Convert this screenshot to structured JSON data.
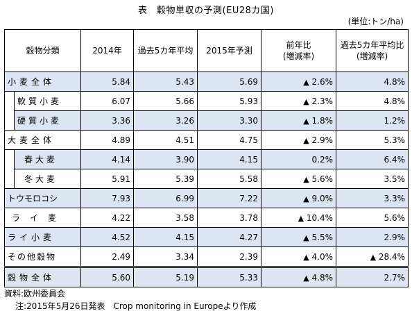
{
  "title": "表　穀物単収の予測(EU28カ国)",
  "unit": "(単位:トン/ha)",
  "headers": {
    "category": "穀物分類",
    "y2014": "2014年",
    "avg5": "過去5カ年平均",
    "forecast2015": "2015年予測",
    "yoy_line1": "前年比",
    "yoy_line2": "(増減率)",
    "vs5_line1": "過去5カ年平均比",
    "vs5_line2": "(増減率)"
  },
  "rows": [
    {
      "label": "小麦全体",
      "y2014": "5.84",
      "avg5": "5.43",
      "f2015": "5.69",
      "yoy_neg": "▲",
      "yoy": "2.6%",
      "vs5_neg": "",
      "vs5": "4.8%"
    },
    {
      "label": "軟質小麦",
      "y2014": "6.07",
      "avg5": "5.66",
      "f2015": "5.93",
      "yoy_neg": "▲",
      "yoy": "2.3%",
      "vs5_neg": "",
      "vs5": "4.8%"
    },
    {
      "label": "硬質小麦",
      "y2014": "3.36",
      "avg5": "3.26",
      "f2015": "3.30",
      "yoy_neg": "▲",
      "yoy": "1.8%",
      "vs5_neg": "",
      "vs5": "1.2%"
    },
    {
      "label": "大麦全体",
      "y2014": "4.89",
      "avg5": "4.51",
      "f2015": "4.75",
      "yoy_neg": "▲",
      "yoy": "2.9%",
      "vs5_neg": "",
      "vs5": "5.3%"
    },
    {
      "label": "春大麦",
      "y2014": "4.14",
      "avg5": "3.90",
      "f2015": "4.15",
      "yoy_neg": "",
      "yoy": "0.2%",
      "vs5_neg": "",
      "vs5": "6.4%"
    },
    {
      "label": "冬大麦",
      "y2014": "5.91",
      "avg5": "5.39",
      "f2015": "5.58",
      "yoy_neg": "▲",
      "yoy": "5.6%",
      "vs5_neg": "",
      "vs5": "3.5%"
    },
    {
      "label": "トウモロコシ",
      "y2014": "7.93",
      "avg5": "6.99",
      "f2015": "7.22",
      "yoy_neg": "▲",
      "yoy": "9.0%",
      "vs5_neg": "",
      "vs5": "3.3%"
    },
    {
      "label": "ライ麦",
      "y2014": "4.22",
      "avg5": "3.58",
      "f2015": "3.78",
      "yoy_neg": "▲",
      "yoy": "10.4%",
      "vs5_neg": "",
      "vs5": "5.6%"
    },
    {
      "label": "ライ小麦",
      "y2014": "4.52",
      "avg5": "4.15",
      "f2015": "4.27",
      "yoy_neg": "▲",
      "yoy": "5.5%",
      "vs5_neg": "",
      "vs5": "2.9%"
    },
    {
      "label": "その他穀物",
      "y2014": "2.49",
      "avg5": "3.34",
      "f2015": "2.39",
      "yoy_neg": "▲",
      "yoy": "4.0%",
      "vs5_neg": "▲",
      "vs5": "28.4%"
    },
    {
      "label": "穀物全体",
      "y2014": "5.60",
      "avg5": "5.19",
      "f2015": "5.33",
      "yoy_neg": "▲",
      "yoy": "4.8%",
      "vs5_neg": "",
      "vs5": "2.7%"
    }
  ],
  "footer": {
    "source": "資料:欧州委員会",
    "note": "注:2015年5月26日発表　Crop monitoring in Europeより作成"
  },
  "colors": {
    "shade": "#dde4f2"
  }
}
